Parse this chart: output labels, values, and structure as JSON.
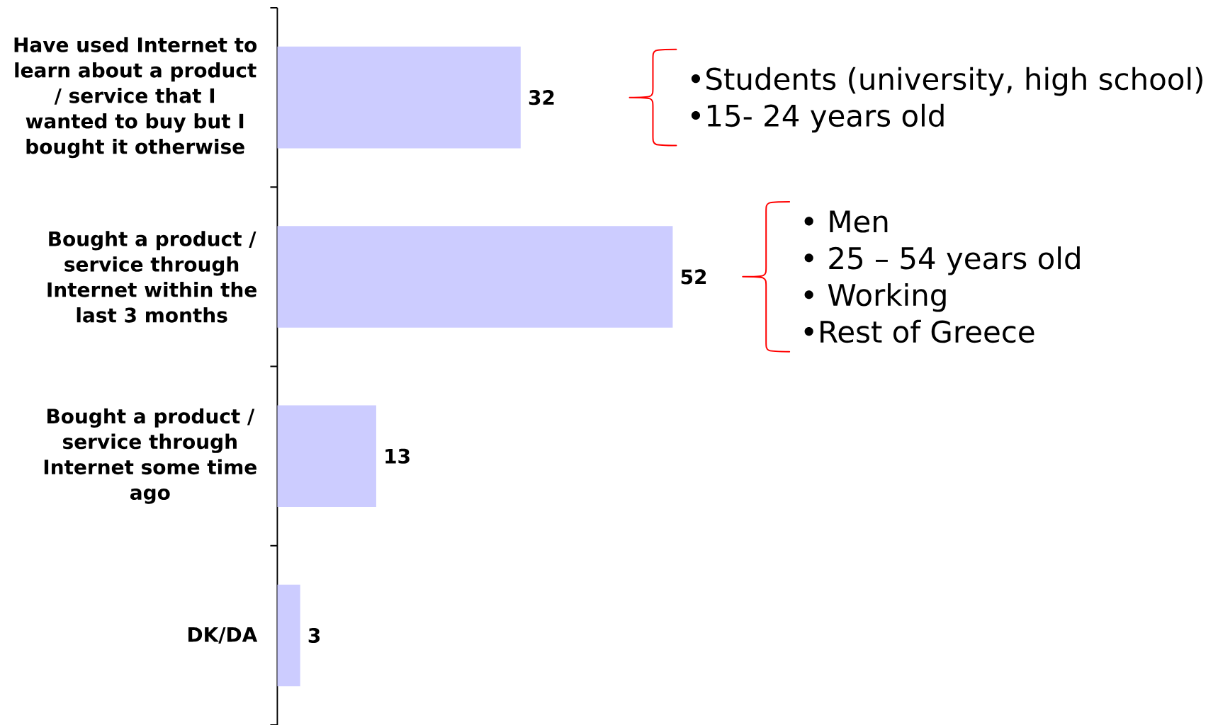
{
  "chart_data": {
    "type": "bar",
    "orientation": "horizontal",
    "categories": [
      "Have used Internet to learn about a product / service that I wanted to buy but I bought it otherwise",
      "Bought a product / service through Internet within the last 3 months",
      "Bought a product / service through Internet some time ago",
      "DK/DA"
    ],
    "values": [
      32,
      52,
      13,
      3
    ],
    "color": "#ccccff",
    "data_labels": true,
    "annotations": [
      "•Students (university, high school)",
      "•15- 24 years old",
      "• Men",
      "• 25 – 54 years old",
      "• Working",
      "•Rest of Greece"
    ]
  }
}
